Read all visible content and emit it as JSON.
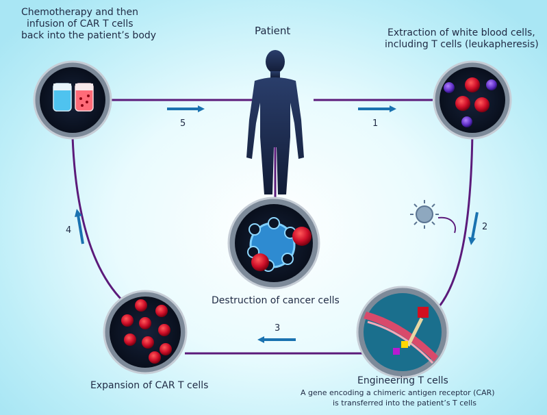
{
  "labels": {
    "patient": "Patient",
    "step1": "Extraction of white blood cells,",
    "step1b": "including T cells (leukapheresis)",
    "step5a": "Chemotherapy and then",
    "step5b": "infusion of CAR T cells",
    "step5c": "back into the patient’s body",
    "destruction": "Destruction of cancer cells",
    "expansion": "Expansion of CAR T cells",
    "engineering": "Engineering T cells",
    "engineering_note1": "A gene encoding a chimeric antigen receptor (CAR)",
    "engineering_note2": "is transferred into the patient’s T cells"
  },
  "numbers": {
    "n1": "1",
    "n2": "2",
    "n3": "3",
    "n4": "4",
    "n5": "5"
  },
  "colors": {
    "loop": "#5b1a7a",
    "arrow": "#1a72b0",
    "patient": "#1d2b4d",
    "cell": "#c9102a",
    "circle_bg": "#0b1426"
  }
}
